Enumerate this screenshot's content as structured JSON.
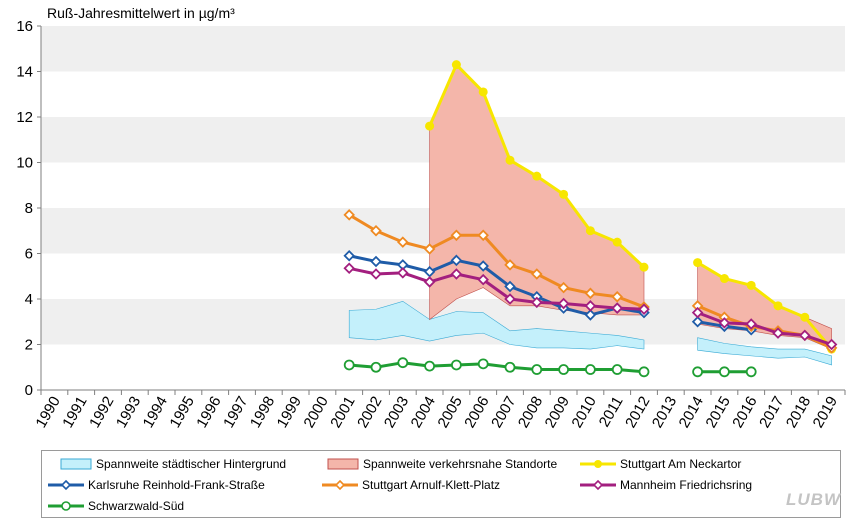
{
  "chart_data": {
    "type": "line",
    "title": "Ruß-Jahresmittelwert in µg/m³",
    "xlabel": "",
    "ylabel": "",
    "ylim": [
      0,
      16
    ],
    "yticks": [
      0,
      2,
      4,
      6,
      8,
      10,
      12,
      14,
      16
    ],
    "categories": [
      "1990",
      "1991",
      "1992",
      "1993",
      "1994",
      "1995",
      "1996",
      "1997",
      "1998",
      "1999",
      "2000",
      "2001",
      "2002",
      "2003",
      "2004",
      "2005",
      "2006",
      "2007",
      "2008",
      "2009",
      "2010",
      "2011",
      "2012",
      "2013",
      "2014",
      "2015",
      "2016",
      "2017",
      "2018",
      "2019"
    ],
    "grid": "horizontal bands",
    "legend_position": "bottom",
    "colors": {
      "band_background": "#c4f0fb",
      "band_traffic": "#f4b6aa",
      "neckartor": "#f7e600",
      "karlsruhe": "#1f5ca8",
      "arnulf": "#ef8a22",
      "mannheim": "#a31f7f",
      "schwarzwald": "#1f9e33"
    },
    "bands": [
      {
        "name": "Spannweite städtischer Hintergrund",
        "color": "#c4f0fb",
        "segments": [
          {
            "x": [
              "2001",
              "2002",
              "2003",
              "2004",
              "2005",
              "2006",
              "2007",
              "2008",
              "2009",
              "2010",
              "2011",
              "2012"
            ],
            "low": [
              2.3,
              2.2,
              2.4,
              2.15,
              2.4,
              2.5,
              2.0,
              1.85,
              1.85,
              1.8,
              1.95,
              1.8
            ],
            "high": [
              3.5,
              3.55,
              3.9,
              3.1,
              3.45,
              3.4,
              2.6,
              2.7,
              2.6,
              2.5,
              2.4,
              2.2
            ]
          },
          {
            "x": [
              "2014",
              "2015",
              "2016",
              "2017",
              "2018",
              "2019"
            ],
            "low": [
              1.75,
              1.6,
              1.5,
              1.4,
              1.45,
              1.1
            ],
            "high": [
              2.3,
              2.05,
              1.9,
              1.8,
              1.8,
              1.5
            ]
          }
        ]
      },
      {
        "name": "Spannweite verkehrsnahe Standorte",
        "color": "#f4b6aa",
        "segments": [
          {
            "x": [
              "2004",
              "2005",
              "2006",
              "2007",
              "2008",
              "2009",
              "2010",
              "2011",
              "2012"
            ],
            "low": [
              3.1,
              4.0,
              4.5,
              3.7,
              3.7,
              3.5,
              3.4,
              3.3,
              3.3
            ],
            "high": [
              11.6,
              14.3,
              13.1,
              10.1,
              9.4,
              8.6,
              7.0,
              6.5,
              5.4
            ]
          },
          {
            "x": [
              "2014",
              "2015",
              "2016",
              "2017",
              "2018",
              "2019"
            ],
            "low": [
              2.9,
              2.7,
              2.6,
              2.4,
              2.3,
              1.8
            ],
            "high": [
              5.6,
              4.9,
              4.6,
              3.7,
              3.2,
              2.7
            ]
          }
        ]
      }
    ],
    "series": [
      {
        "name": "Stuttgart Am Neckartor",
        "key": "neckartor",
        "marker": "circle-filled",
        "segments": [
          {
            "x": [
              "2004",
              "2005",
              "2006",
              "2007",
              "2008",
              "2009",
              "2010",
              "2011",
              "2012"
            ],
            "values": [
              11.6,
              14.3,
              13.1,
              10.1,
              9.4,
              8.6,
              7.0,
              6.5,
              5.4
            ]
          },
          {
            "x": [
              "2014",
              "2015",
              "2016",
              "2017",
              "2018",
              "2019"
            ],
            "values": [
              5.6,
              4.9,
              4.6,
              3.7,
              3.2,
              1.8
            ]
          }
        ]
      },
      {
        "name": "Karlsruhe Reinhold-Frank-Straße",
        "key": "karlsruhe",
        "marker": "diamond",
        "segments": [
          {
            "x": [
              "2001",
              "2002",
              "2003",
              "2004",
              "2005",
              "2006",
              "2007",
              "2008",
              "2009",
              "2010",
              "2011",
              "2012"
            ],
            "values": [
              5.9,
              5.65,
              5.5,
              5.2,
              5.7,
              5.45,
              4.55,
              4.1,
              3.6,
              3.3,
              3.6,
              3.4
            ]
          },
          {
            "x": [
              "2014",
              "2015",
              "2016"
            ],
            "values": [
              3.0,
              2.8,
              2.65
            ]
          }
        ]
      },
      {
        "name": "Stuttgart Arnulf-Klett-Platz",
        "key": "arnulf",
        "marker": "diamond",
        "segments": [
          {
            "x": [
              "2001",
              "2002",
              "2003",
              "2004",
              "2005",
              "2006",
              "2007",
              "2008",
              "2009",
              "2010",
              "2011",
              "2012"
            ],
            "values": [
              7.7,
              7.0,
              6.5,
              6.2,
              6.8,
              6.8,
              5.5,
              5.1,
              4.5,
              4.25,
              4.1,
              3.65
            ]
          },
          {
            "x": [
              "2014",
              "2015",
              "2016",
              "2017",
              "2018",
              "2019"
            ],
            "values": [
              3.7,
              3.2,
              2.8,
              2.6,
              2.4,
              1.85
            ]
          }
        ]
      },
      {
        "name": "Mannheim Friedrichsring",
        "key": "mannheim",
        "marker": "diamond",
        "segments": [
          {
            "x": [
              "2001",
              "2002",
              "2003",
              "2004",
              "2005",
              "2006",
              "2007",
              "2008",
              "2009",
              "2010",
              "2011",
              "2012"
            ],
            "values": [
              5.35,
              5.1,
              5.15,
              4.75,
              5.1,
              4.85,
              4.0,
              3.85,
              3.8,
              3.7,
              3.6,
              3.55
            ]
          },
          {
            "x": [
              "2014",
              "2015",
              "2016",
              "2017",
              "2018",
              "2019"
            ],
            "values": [
              3.4,
              2.95,
              2.9,
              2.5,
              2.4,
              2.0
            ]
          }
        ]
      },
      {
        "name": "Schwarzwald-Süd",
        "key": "schwarzwald",
        "marker": "circle-open",
        "segments": [
          {
            "x": [
              "2001",
              "2002",
              "2003",
              "2004",
              "2005",
              "2006",
              "2007",
              "2008",
              "2009",
              "2010",
              "2011",
              "2012"
            ],
            "values": [
              1.1,
              1.0,
              1.2,
              1.05,
              1.1,
              1.15,
              1.0,
              0.9,
              0.9,
              0.9,
              0.9,
              0.8
            ]
          },
          {
            "x": [
              "2014",
              "2015",
              "2016"
            ],
            "values": [
              0.8,
              0.8,
              0.8
            ]
          }
        ]
      }
    ]
  },
  "legend": [
    {
      "label": "Spannweite städtischer Hintergrund",
      "kind": "band",
      "color": "#c4f0fb",
      "stroke": "#3aaad5"
    },
    {
      "label": "Spannweite verkehrsnahe Standorte",
      "kind": "band",
      "color": "#f4b6aa",
      "stroke": "#c0504d"
    },
    {
      "label": "Stuttgart Am Neckartor",
      "kind": "line",
      "color": "#f7e600",
      "marker": "circle-filled"
    },
    {
      "label": "Karlsruhe Reinhold-Frank-Straße",
      "kind": "line",
      "color": "#1f5ca8",
      "marker": "diamond"
    },
    {
      "label": "Stuttgart Arnulf-Klett-Platz",
      "kind": "line",
      "color": "#ef8a22",
      "marker": "diamond"
    },
    {
      "label": "Mannheim Friedrichsring",
      "kind": "line",
      "color": "#a31f7f",
      "marker": "diamond"
    },
    {
      "label": "Schwarzwald-Süd",
      "kind": "line",
      "color": "#1f9e33",
      "marker": "circle-open"
    }
  ],
  "logo_text": "LUBW"
}
